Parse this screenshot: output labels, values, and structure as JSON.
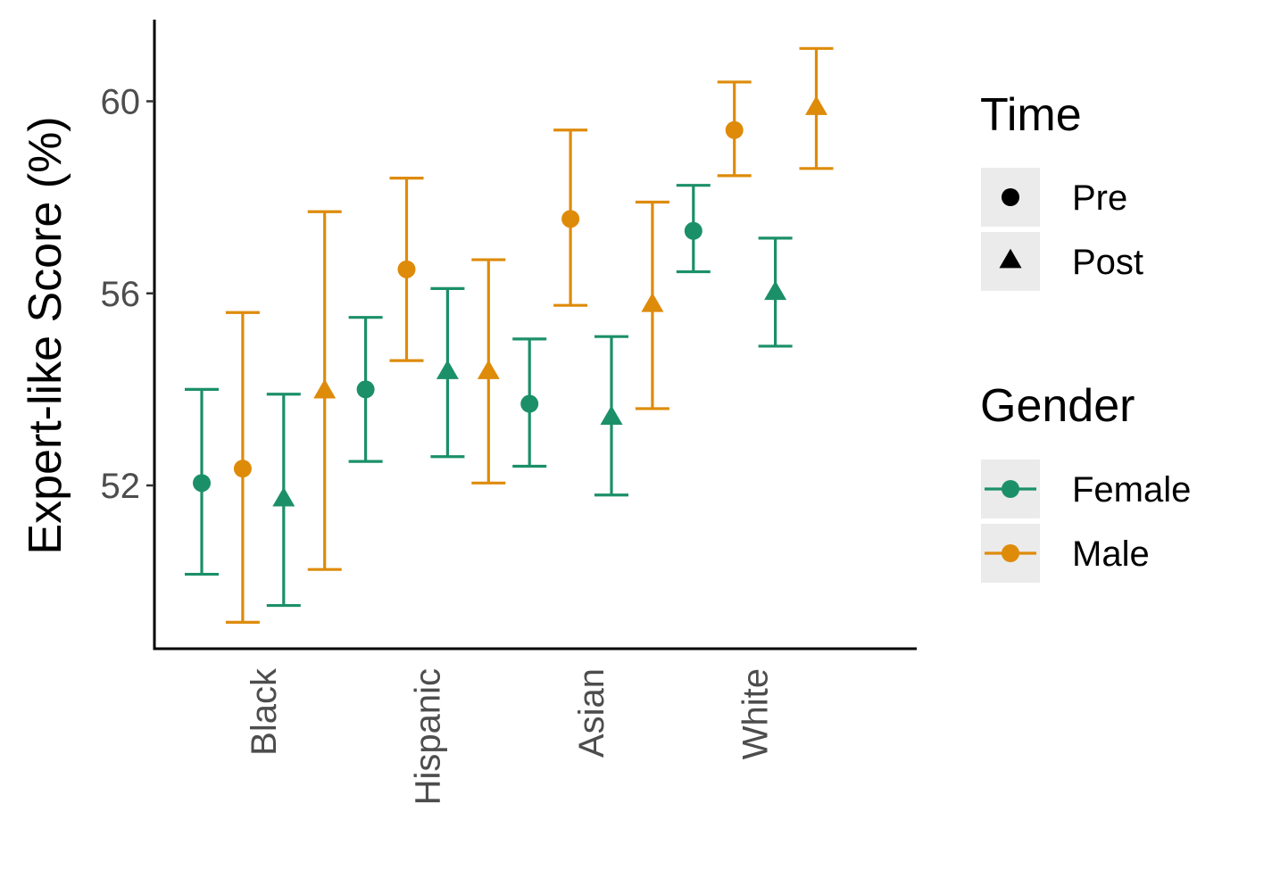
{
  "chart_data": {
    "type": "scatter",
    "ylabel": "Expert-like Score (%)",
    "xlabel": "",
    "ylim": [
      48.6,
      61.7
    ],
    "y_ticks": [
      52,
      56,
      60
    ],
    "categories": [
      "Black",
      "Hispanic",
      "Asian",
      "White"
    ],
    "groups": [
      "Female Pre",
      "Male Pre",
      "Female Post",
      "Male Post"
    ],
    "points": [
      {
        "category": "Black",
        "gender": "Female",
        "time": "Pre",
        "y": 52.05,
        "lo": 50.15,
        "hi": 54.0
      },
      {
        "category": "Black",
        "gender": "Male",
        "time": "Pre",
        "y": 52.35,
        "lo": 49.15,
        "hi": 55.6
      },
      {
        "category": "Black",
        "gender": "Female",
        "time": "Post",
        "y": 51.7,
        "lo": 49.5,
        "hi": 53.9
      },
      {
        "category": "Black",
        "gender": "Male",
        "time": "Post",
        "y": 53.95,
        "lo": 50.25,
        "hi": 57.7
      },
      {
        "category": "Hispanic",
        "gender": "Female",
        "time": "Pre",
        "y": 54.0,
        "lo": 52.5,
        "hi": 55.5
      },
      {
        "category": "Hispanic",
        "gender": "Male",
        "time": "Pre",
        "y": 56.5,
        "lo": 54.6,
        "hi": 58.4
      },
      {
        "category": "Hispanic",
        "gender": "Female",
        "time": "Post",
        "y": 54.35,
        "lo": 52.6,
        "hi": 56.1
      },
      {
        "category": "Hispanic",
        "gender": "Male",
        "time": "Post",
        "y": 54.35,
        "lo": 52.05,
        "hi": 56.7
      },
      {
        "category": "Asian",
        "gender": "Female",
        "time": "Pre",
        "y": 53.7,
        "lo": 52.4,
        "hi": 55.05
      },
      {
        "category": "Asian",
        "gender": "Male",
        "time": "Pre",
        "y": 57.55,
        "lo": 55.75,
        "hi": 59.4
      },
      {
        "category": "Asian",
        "gender": "Female",
        "time": "Post",
        "y": 53.4,
        "lo": 51.8,
        "hi": 55.1
      },
      {
        "category": "Asian",
        "gender": "Male",
        "time": "Post",
        "y": 55.75,
        "lo": 53.6,
        "hi": 57.9
      },
      {
        "category": "White",
        "gender": "Female",
        "time": "Pre",
        "y": 57.3,
        "lo": 56.45,
        "hi": 58.25
      },
      {
        "category": "White",
        "gender": "Male",
        "time": "Pre",
        "y": 59.4,
        "lo": 58.45,
        "hi": 60.4
      },
      {
        "category": "White",
        "gender": "Female",
        "time": "Post",
        "y": 56.0,
        "lo": 54.9,
        "hi": 57.15
      },
      {
        "category": "White",
        "gender": "Male",
        "time": "Post",
        "y": 59.85,
        "lo": 58.6,
        "hi": 61.1
      }
    ],
    "colors": {
      "Female": "#1b9068",
      "Male": "#de8b0a"
    },
    "shapes": {
      "Pre": "circle",
      "Post": "triangle"
    },
    "legend": {
      "placement": "right",
      "time_title": "Time",
      "time_items": [
        "Pre",
        "Post"
      ],
      "gender_title": "Gender",
      "gender_items": [
        "Female",
        "Male"
      ]
    },
    "grid": false
  }
}
